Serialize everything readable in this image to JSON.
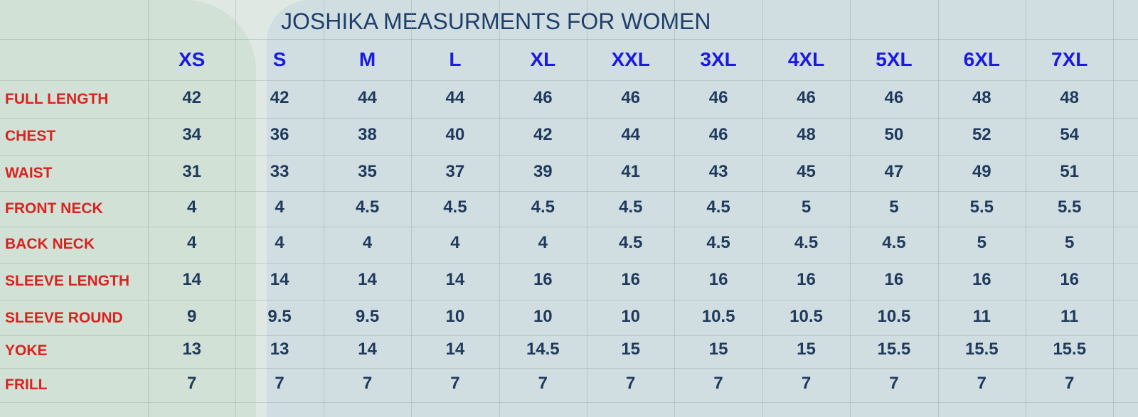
{
  "header": {
    "title": "JOSHIKA MEASURMENTS FOR WOMEN"
  },
  "table": {
    "columns": [
      "XS",
      "S",
      "M",
      "L",
      "XL",
      "XXL",
      "3XL",
      "4XL",
      "5XL",
      "6XL",
      "7XL"
    ],
    "rows": [
      {
        "label": "FULL LENGTH",
        "values": [
          42,
          42,
          44,
          44,
          46,
          46,
          46,
          46,
          46,
          48,
          48
        ]
      },
      {
        "label": "CHEST",
        "values": [
          34,
          36,
          38,
          40,
          42,
          44,
          46,
          48,
          50,
          52,
          54
        ]
      },
      {
        "label": "WAIST",
        "values": [
          31,
          33,
          35,
          37,
          39,
          41,
          43,
          45,
          47,
          49,
          51
        ]
      },
      {
        "label": "FRONT NECK",
        "values": [
          4,
          4,
          4.5,
          4.5,
          4.5,
          4.5,
          4.5,
          5,
          5,
          5.5,
          5.5
        ]
      },
      {
        "label": "BACK NECK",
        "values": [
          4,
          4,
          4,
          4,
          4,
          4.5,
          4.5,
          4.5,
          4.5,
          5,
          5
        ]
      },
      {
        "label": "SLEEVE LENGTH",
        "values": [
          14,
          14,
          14,
          14,
          16,
          16,
          16,
          16,
          16,
          16,
          16
        ]
      },
      {
        "label": "SLEEVE ROUND",
        "values": [
          9,
          9.5,
          9.5,
          10,
          10,
          10,
          10.5,
          10.5,
          10.5,
          11,
          11
        ]
      },
      {
        "label": "YOKE",
        "values": [
          13,
          13,
          14,
          14,
          14.5,
          15,
          15,
          15,
          15.5,
          15.5,
          15.5
        ]
      },
      {
        "label": "FRILL",
        "values": [
          7,
          7,
          7,
          7,
          7,
          7,
          7,
          7,
          7,
          7,
          7
        ]
      }
    ]
  }
}
